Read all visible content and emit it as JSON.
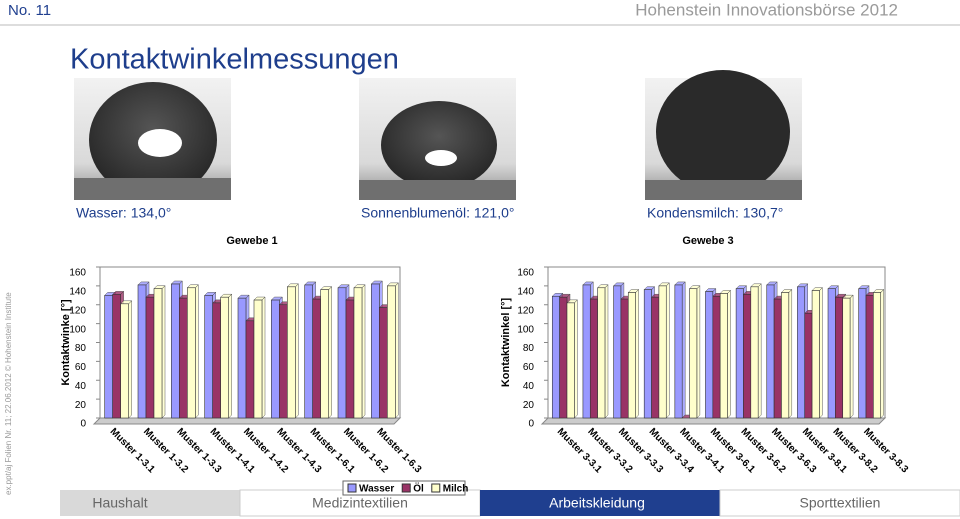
{
  "header": {
    "number": "No. 11",
    "event": "Hohenstein Innovationsbörse 2012",
    "title": "Kontaktwinkelmessungen"
  },
  "images": [
    {
      "caption": "Wasser: 134,0°"
    },
    {
      "caption": "Sonnenblumenöl: 121,0°"
    },
    {
      "caption": "Kondensmilch: 130,7°"
    }
  ],
  "side_note": "ex.ppt/aj Folien Nr. 11; 22.06.2012 © Hohenstein Institute",
  "nav": [
    "Haushalt",
    "Medizintextilien",
    "Arbeitskleidung",
    "Sporttextilien"
  ],
  "chart_data": [
    {
      "type": "bar",
      "title": "Gewebe 1",
      "y_label": "Kontaktwinke [°]",
      "categories": [
        "Muster 1-3.1",
        "Muster 1-3.2",
        "Muster 1-3.3",
        "Muster 1-4.1",
        "Muster 1-4.2",
        "Muster 1-4.3",
        "Muster 1-6.1",
        "Muster 1-6.2",
        "Muster 1-6.3"
      ],
      "series": [
        {
          "name": "Wasser",
          "color": "#9999ff",
          "values": [
            130,
            141,
            142,
            130,
            127,
            125,
            141,
            138,
            142
          ]
        },
        {
          "name": "Öl",
          "color": "#993366",
          "values": [
            131,
            128,
            127,
            122,
            103,
            120,
            126,
            125,
            117
          ]
        },
        {
          "name": "Milch",
          "color": "#ffffcc",
          "values": [
            121,
            137,
            138,
            128,
            125,
            139,
            136,
            138,
            140
          ]
        }
      ],
      "ylim": [
        0,
        160
      ],
      "yticks": [
        0,
        20,
        40,
        60,
        80,
        100,
        120,
        140,
        160
      ],
      "grid": false,
      "legend": "bottom"
    },
    {
      "type": "bar",
      "title": "Gewebe 3",
      "y_label": "Kontaktwinkel [°]",
      "categories": [
        "Muster 3-3.1",
        "Muster 3-3.2",
        "Muster 3-3.3",
        "Muster 3-3.4",
        "Muster 3-4.1",
        "Muster 3-6.1",
        "Muster 3-6.2",
        "Muster 3-6.3",
        "Muster 3-8.1",
        "Muster 3-8.2",
        "Muster 3-8.3"
      ],
      "series": [
        {
          "name": "Wasser",
          "color": "#9999ff",
          "values": [
            129,
            141,
            140,
            136,
            141,
            134,
            137,
            141,
            139,
            137,
            137
          ]
        },
        {
          "name": "Öl",
          "color": "#993366",
          "values": [
            128,
            126,
            126,
            128,
            0,
            129,
            131,
            126,
            111,
            128,
            130
          ]
        },
        {
          "name": "Milch",
          "color": "#ffffcc",
          "values": [
            122,
            138,
            133,
            140,
            137,
            132,
            139,
            133,
            135,
            127,
            133
          ]
        }
      ],
      "ylim": [
        0,
        160
      ],
      "yticks": [
        0,
        20,
        40,
        60,
        80,
        100,
        120,
        140,
        160
      ],
      "grid": false
    }
  ]
}
